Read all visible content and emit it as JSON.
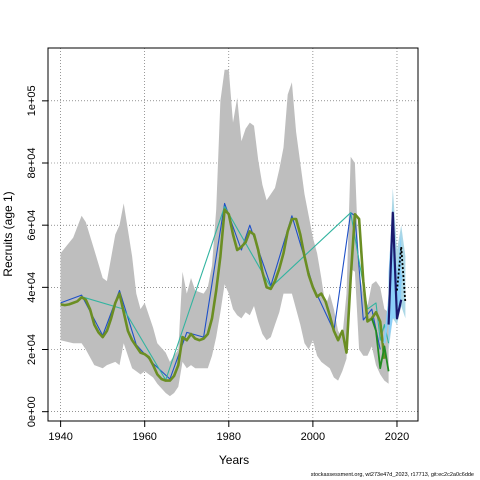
{
  "chart_data": {
    "type": "line",
    "xlabel": "Years",
    "ylabel": "Recruits (age 1)",
    "xlim": [
      1937,
      2025
    ],
    "ylim": [
      -3000,
      117000
    ],
    "xticks": [
      1940,
      1960,
      1980,
      2000,
      2020
    ],
    "yticks": [
      0,
      20000,
      40000,
      60000,
      80000,
      100000
    ],
    "ytick_labels": [
      "0e+00",
      "2e+04",
      "4e+04",
      "6e+04",
      "8e+04",
      "1e+05"
    ],
    "grid": true,
    "colors": {
      "band": "#bebebe",
      "band_light": "#add8e6",
      "main": "#6b8e23",
      "alt1": "#1e50c8",
      "alt2": "#32b4a0",
      "alt3": "#228b22",
      "recent_dark": "#1a1a6e",
      "recent_light": "#87cefa",
      "final": "#000000"
    },
    "band": {
      "x": [
        1940,
        1943,
        1945,
        1946,
        1948,
        1950,
        1951,
        1953,
        1954,
        1955,
        1957,
        1958,
        1959,
        1960,
        1962,
        1963,
        1965,
        1966,
        1967,
        1968,
        1969,
        1970,
        1971,
        1972,
        1974,
        1975,
        1976,
        1977,
        1978,
        1979,
        1980,
        1981,
        1982,
        1983,
        1984,
        1985,
        1986,
        1987,
        1988,
        1989,
        1990,
        1991,
        1992,
        1993,
        1994,
        1995,
        1996,
        1997,
        1998,
        1999,
        2000,
        2001,
        2002,
        2003,
        2004,
        2005,
        2006,
        2007,
        2008,
        2009,
        2010,
        2011,
        2012,
        2013,
        2014,
        2015,
        2016,
        2017,
        2018
      ],
      "upper": [
        51000,
        56000,
        63000,
        61000,
        52000,
        43000,
        42000,
        57000,
        60000,
        67000,
        50000,
        38000,
        33000,
        35000,
        27000,
        22000,
        19000,
        16000,
        18000,
        20000,
        45000,
        38000,
        43000,
        39000,
        38000,
        40000,
        47000,
        65000,
        100000,
        110000,
        110000,
        93000,
        101000,
        87000,
        91000,
        93000,
        92000,
        81000,
        73000,
        68000,
        70000,
        72000,
        78000,
        85000,
        102000,
        106000,
        90000,
        80000,
        70000,
        63000,
        56000,
        51000,
        43000,
        34000,
        38000,
        33000,
        26000,
        24000,
        38000,
        82000,
        80000,
        45000,
        38000,
        34000,
        41000,
        42000,
        40000,
        33000,
        32000
      ],
      "lower": [
        23000,
        22000,
        22000,
        20000,
        15000,
        14000,
        15000,
        16000,
        15000,
        22000,
        14000,
        13000,
        12000,
        13000,
        11000,
        9000,
        6000,
        5000,
        6000,
        8000,
        16000,
        14000,
        15000,
        14000,
        14000,
        14000,
        18000,
        24000,
        32000,
        41000,
        38000,
        33000,
        31000,
        30000,
        32000,
        31000,
        34000,
        29000,
        25000,
        23000,
        24000,
        28000,
        32000,
        38000,
        38000,
        38000,
        33000,
        28000,
        22000,
        20000,
        23000,
        18000,
        16000,
        15000,
        14000,
        11000,
        10000,
        13000,
        17000,
        46000,
        45000,
        20000,
        18000,
        18000,
        21000,
        15000,
        12000,
        10000,
        9000
      ]
    },
    "series": [
      {
        "x": [
          1940,
          1941,
          1942,
          1943,
          1944,
          1945,
          1946,
          1947,
          1948,
          1949,
          1950,
          1951,
          1952,
          1953,
          1954,
          1955,
          1956,
          1957,
          1958,
          1959,
          1960,
          1961,
          1962,
          1963,
          1964,
          1965,
          1966,
          1967,
          1968,
          1969,
          1970,
          1971,
          1972,
          1973,
          1974,
          1975,
          1976,
          1977,
          1978,
          1979,
          1980,
          1981,
          1982,
          1983,
          1984,
          1985,
          1986,
          1987,
          1988,
          1989,
          1990,
          1991,
          1992,
          1993,
          1994,
          1995,
          1996,
          1997,
          1998,
          1999,
          2000,
          2001,
          2002,
          2003,
          2004,
          2005,
          2006,
          2007,
          2008,
          2009,
          2010,
          2011,
          2012,
          2013,
          2014,
          2015,
          2016,
          2017
        ],
        "values": [
          34500,
          34300,
          34500,
          35000,
          35500,
          36800,
          36000,
          33000,
          28000,
          25500,
          24000,
          26000,
          30000,
          35000,
          38000,
          32000,
          26000,
          23000,
          21000,
          19000,
          18500,
          17500,
          15000,
          12000,
          10500,
          10000,
          10000,
          11500,
          15000,
          24000,
          23000,
          25000,
          23500,
          23000,
          23500,
          25000,
          30000,
          39000,
          50000,
          65000,
          63500,
          57000,
          52000,
          53000,
          54500,
          58000,
          57000,
          52000,
          45000,
          40000,
          39500,
          42000,
          46000,
          51000,
          58000,
          62000,
          62000,
          57000,
          50000,
          44000,
          40000,
          37000,
          38000,
          35500,
          31000,
          26000,
          23000,
          26000,
          19000,
          43000,
          63500,
          62000,
          42000,
          29000,
          30000,
          32000,
          29000,
          17000
        ]
      },
      {
        "x": [
          1940,
          1945,
          1950,
          1954,
          1958,
          1962,
          1966,
          1970,
          1974,
          1979,
          1983,
          1985,
          1990,
          1995,
          2000,
          2005,
          2009,
          2010,
          2012,
          2014,
          2016
        ],
        "values": [
          35000,
          37500,
          24500,
          39000,
          21500,
          15500,
          10500,
          25500,
          24000,
          67000,
          52000,
          60000,
          40500,
          63000,
          40500,
          26000,
          64000,
          63000,
          29500,
          33000,
          20000
        ]
      },
      {
        "x": [
          1945,
          1955,
          1965,
          1979,
          1990,
          2009,
          2013,
          2015,
          2016,
          2017,
          2018
        ],
        "values": [
          37000,
          33000,
          10200,
          66000,
          40000,
          64000,
          33000,
          35000,
          23000,
          28000,
          22000
        ]
      },
      {
        "x": [
          2014,
          2015,
          2016,
          2017,
          2018
        ],
        "values": [
          30000,
          26000,
          14000,
          21000,
          13000
        ]
      },
      {
        "x": [
          2017,
          2018,
          2019,
          2020,
          2021
        ],
        "values": [
          22000,
          34000,
          50000,
          32000,
          44000
        ]
      },
      {
        "x": [
          2018,
          2019,
          2020,
          2021
        ],
        "values": [
          28000,
          64000,
          30000,
          36000
        ]
      },
      {
        "x": [
          2020,
          2021,
          2022
        ],
        "values": [
          39000,
          53000,
          35000
        ]
      }
    ]
  },
  "footer": "stockassessment.org, wt273e47d_2023, r17713, git:ec2c2a0c6dde"
}
